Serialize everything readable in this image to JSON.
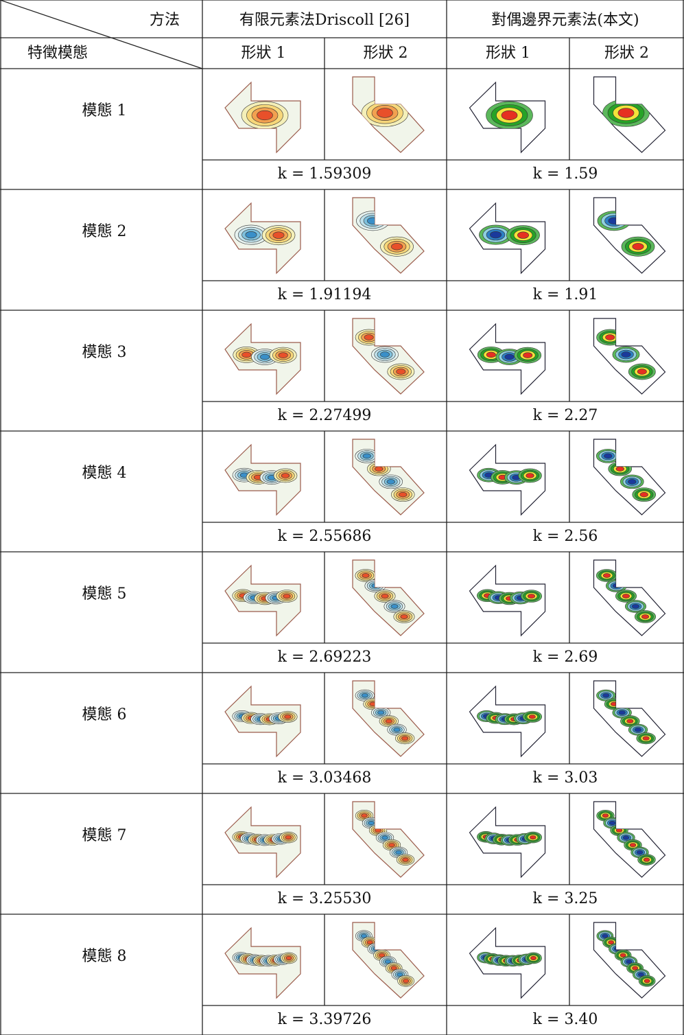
{
  "header": {
    "method": "方法",
    "mode": "特徵模態",
    "fem": "有限元素法Driscoll [26]",
    "bem": "對偶邊界元素法(本文)",
    "shapes": [
      "形狀 1",
      "形狀 2",
      "形狀 1",
      "形狀 2"
    ]
  },
  "rows": [
    {
      "mode": "模態 1",
      "k_fem": "k = 1.59309",
      "k_bem": "k = 1.59"
    },
    {
      "mode": "模態 2",
      "k_fem": "k = 1.91194",
      "k_bem": "k = 1.91"
    },
    {
      "mode": "模態 3",
      "k_fem": "k = 2.27499",
      "k_bem": "k = 2.27"
    },
    {
      "mode": "模態 4",
      "k_fem": "k = 2.55686",
      "k_bem": "k = 2.56"
    },
    {
      "mode": "模態 5",
      "k_fem": "k = 2.69223",
      "k_bem": "k = 2.69"
    },
    {
      "mode": "模態 6",
      "k_fem": "k = 3.03468",
      "k_bem": "k = 3.03"
    },
    {
      "mode": "模態 7",
      "k_fem": "k = 3.25530",
      "k_bem": "k = 3.25"
    },
    {
      "mode": "模態 8",
      "k_fem": "k = 3.39726",
      "k_bem": "k = 3.40"
    }
  ]
}
